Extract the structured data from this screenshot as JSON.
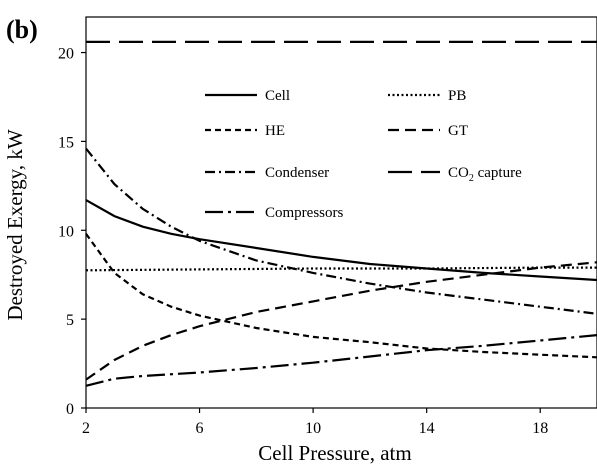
{
  "chart_data": {
    "type": "line",
    "panel_label": "(b)",
    "xlabel": "Cell Pressure, atm",
    "ylabel": "Destroyed Exergy, kW",
    "xlim": [
      2,
      20
    ],
    "ylim": [
      0,
      22
    ],
    "xticks": [
      2,
      6,
      10,
      14,
      18
    ],
    "yticks": [
      0,
      5,
      10,
      15,
      20
    ],
    "grid": false,
    "legend_position": "inside-top",
    "series": [
      {
        "name": "Cell",
        "dash": "solid",
        "x": [
          2,
          3,
          4,
          5,
          6,
          8,
          10,
          12,
          14,
          16,
          18,
          20
        ],
        "y": [
          11.7,
          10.8,
          10.2,
          9.8,
          9.5,
          9.0,
          8.5,
          8.1,
          7.85,
          7.6,
          7.4,
          7.2
        ]
      },
      {
        "name": "PB",
        "dash": "dotted",
        "x": [
          2,
          6,
          10,
          14,
          18,
          20
        ],
        "y": [
          7.75,
          7.8,
          7.85,
          7.85,
          7.9,
          7.9
        ]
      },
      {
        "name": "HE",
        "dash": "short-dash",
        "x": [
          2,
          3,
          4,
          5,
          6,
          8,
          10,
          12,
          14,
          16,
          18,
          20
        ],
        "y": [
          9.8,
          7.6,
          6.4,
          5.7,
          5.2,
          4.5,
          4.0,
          3.7,
          3.35,
          3.15,
          3.0,
          2.85
        ]
      },
      {
        "name": "GT",
        "dash": "dash",
        "x": [
          2,
          3,
          4,
          5,
          6,
          8,
          10,
          12,
          14,
          16,
          18,
          20
        ],
        "y": [
          1.6,
          2.7,
          3.5,
          4.1,
          4.6,
          5.4,
          6.0,
          6.6,
          7.1,
          7.5,
          7.9,
          8.2
        ]
      },
      {
        "name": "Condenser",
        "dash": "dash-dot",
        "x": [
          2,
          3,
          4,
          5,
          6,
          8,
          10,
          12,
          14,
          16,
          18,
          20
        ],
        "y": [
          14.6,
          12.6,
          11.2,
          10.2,
          9.4,
          8.3,
          7.6,
          7.0,
          6.5,
          6.1,
          5.7,
          5.3
        ]
      },
      {
        "name": "CO",
        "name_sub": "2",
        "name_suffix": " capture",
        "dash": "long-dash",
        "x": [
          2,
          20
        ],
        "y": [
          20.6,
          20.6
        ]
      },
      {
        "name": "Compressors",
        "dash": "long-dash-dot",
        "x": [
          2,
          3,
          4,
          6,
          8,
          10,
          12,
          14,
          16,
          18,
          20
        ],
        "y": [
          1.25,
          1.65,
          1.8,
          2.0,
          2.25,
          2.55,
          2.9,
          3.25,
          3.5,
          3.8,
          4.1
        ]
      }
    ]
  }
}
